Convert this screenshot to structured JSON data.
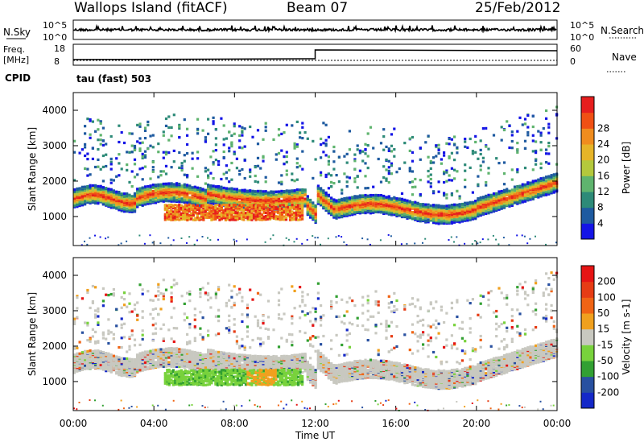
{
  "header": {
    "site": "Wallops Island (fitACF)",
    "beam": "Beam 07",
    "date": "25/Feb/2012"
  },
  "strip_nsky": {
    "left_label": "N.Sky",
    "right_label": "N.Search",
    "ticks": [
      "10^5",
      "10^0"
    ],
    "right_ticks": [
      "10^5",
      "10^0"
    ]
  },
  "strip_freq": {
    "left_label_1": "Freq.",
    "left_label_2": "[MHz]",
    "right_label": "Nave",
    "left_ticks": [
      "18",
      "8"
    ],
    "right_ticks": [
      "60",
      "0"
    ]
  },
  "cpid": {
    "label": "CPID",
    "value": "tau (fast) 503"
  },
  "chart_data": [
    {
      "type": "heatmap",
      "panel": "power",
      "ylabel": "Slant Range [km]",
      "ylim": [
        180,
        4500
      ],
      "yticks": [
        "1000",
        "2000",
        "3000",
        "4000"
      ],
      "xlim": [
        0,
        24
      ],
      "colorbar": {
        "label": "Power [dB]",
        "ticks": [
          "4",
          "8",
          "12",
          "16",
          "20",
          "24",
          "28"
        ],
        "colors": [
          "#1414e6",
          "#1e5aa0",
          "#2d8a78",
          "#5fb46e",
          "#b4c83c",
          "#e6b428",
          "#f08c1e",
          "#f05014",
          "#e61e1e"
        ]
      }
    },
    {
      "type": "heatmap",
      "panel": "velocity",
      "ylabel": "Slant Range [km]",
      "ylim": [
        180,
        4500
      ],
      "yticks": [
        "1000",
        "2000",
        "3000",
        "4000"
      ],
      "xlim": [
        0,
        24
      ],
      "colorbar": {
        "label": "Velocity [m s-1]",
        "ticks": [
          "200",
          "100",
          "50",
          "15",
          "-15",
          "-50",
          "-100",
          "-200"
        ],
        "colors": [
          "#1428c8",
          "#2850a0",
          "#32a032",
          "#78d23c",
          "#c8c8c0",
          "#f0a01e",
          "#f06414",
          "#e63c14",
          "#e61414"
        ]
      }
    }
  ],
  "xaxis": {
    "label": "Time UT",
    "ticks": [
      "00:00",
      "04:00",
      "08:00",
      "12:00",
      "16:00",
      "20:00",
      "00:00"
    ]
  }
}
